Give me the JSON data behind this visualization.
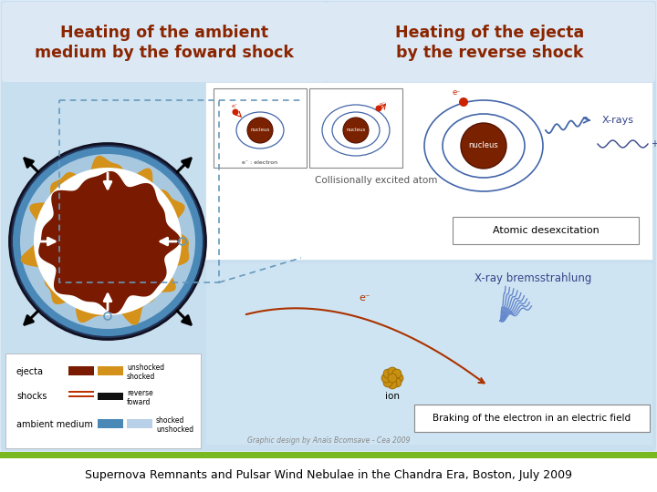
{
  "bg_color": "#c8dff0",
  "slide_bg": "#dce9f5",
  "header_bg": "#dce9f5",
  "title_left": "Heating of the ambient\nmedium by the foward shock",
  "title_right": "Heating of the ejecta\nby the reverse shock",
  "title_color": "#8b2500",
  "bottom_text": "Supernova Remnants and Pulsar Wind Nebulae in the Chandra Era, Boston, July 2009",
  "green_bar": "#7ab820",
  "credit_text": "Graphic design by Anaïs Bcomsave - Cea 2009",
  "white": "#ffffff",
  "atomic_desexcitation_label": "Atomic desexcitation",
  "braking_label": "Braking of the electron in an electric field",
  "collisionally_label": "Collisionally excited atom",
  "xrays_label": "X-rays",
  "bremsstrahlung_label": "X-ray bremsstrahlung",
  "ion_label": "ion",
  "ejecta_dark": "#7a1a00",
  "ejecta_orange": "#d4921a",
  "ambient_blue": "#4a88b8",
  "ambient_light": "#b8d0e8",
  "nucleus_color": "#7a2200"
}
